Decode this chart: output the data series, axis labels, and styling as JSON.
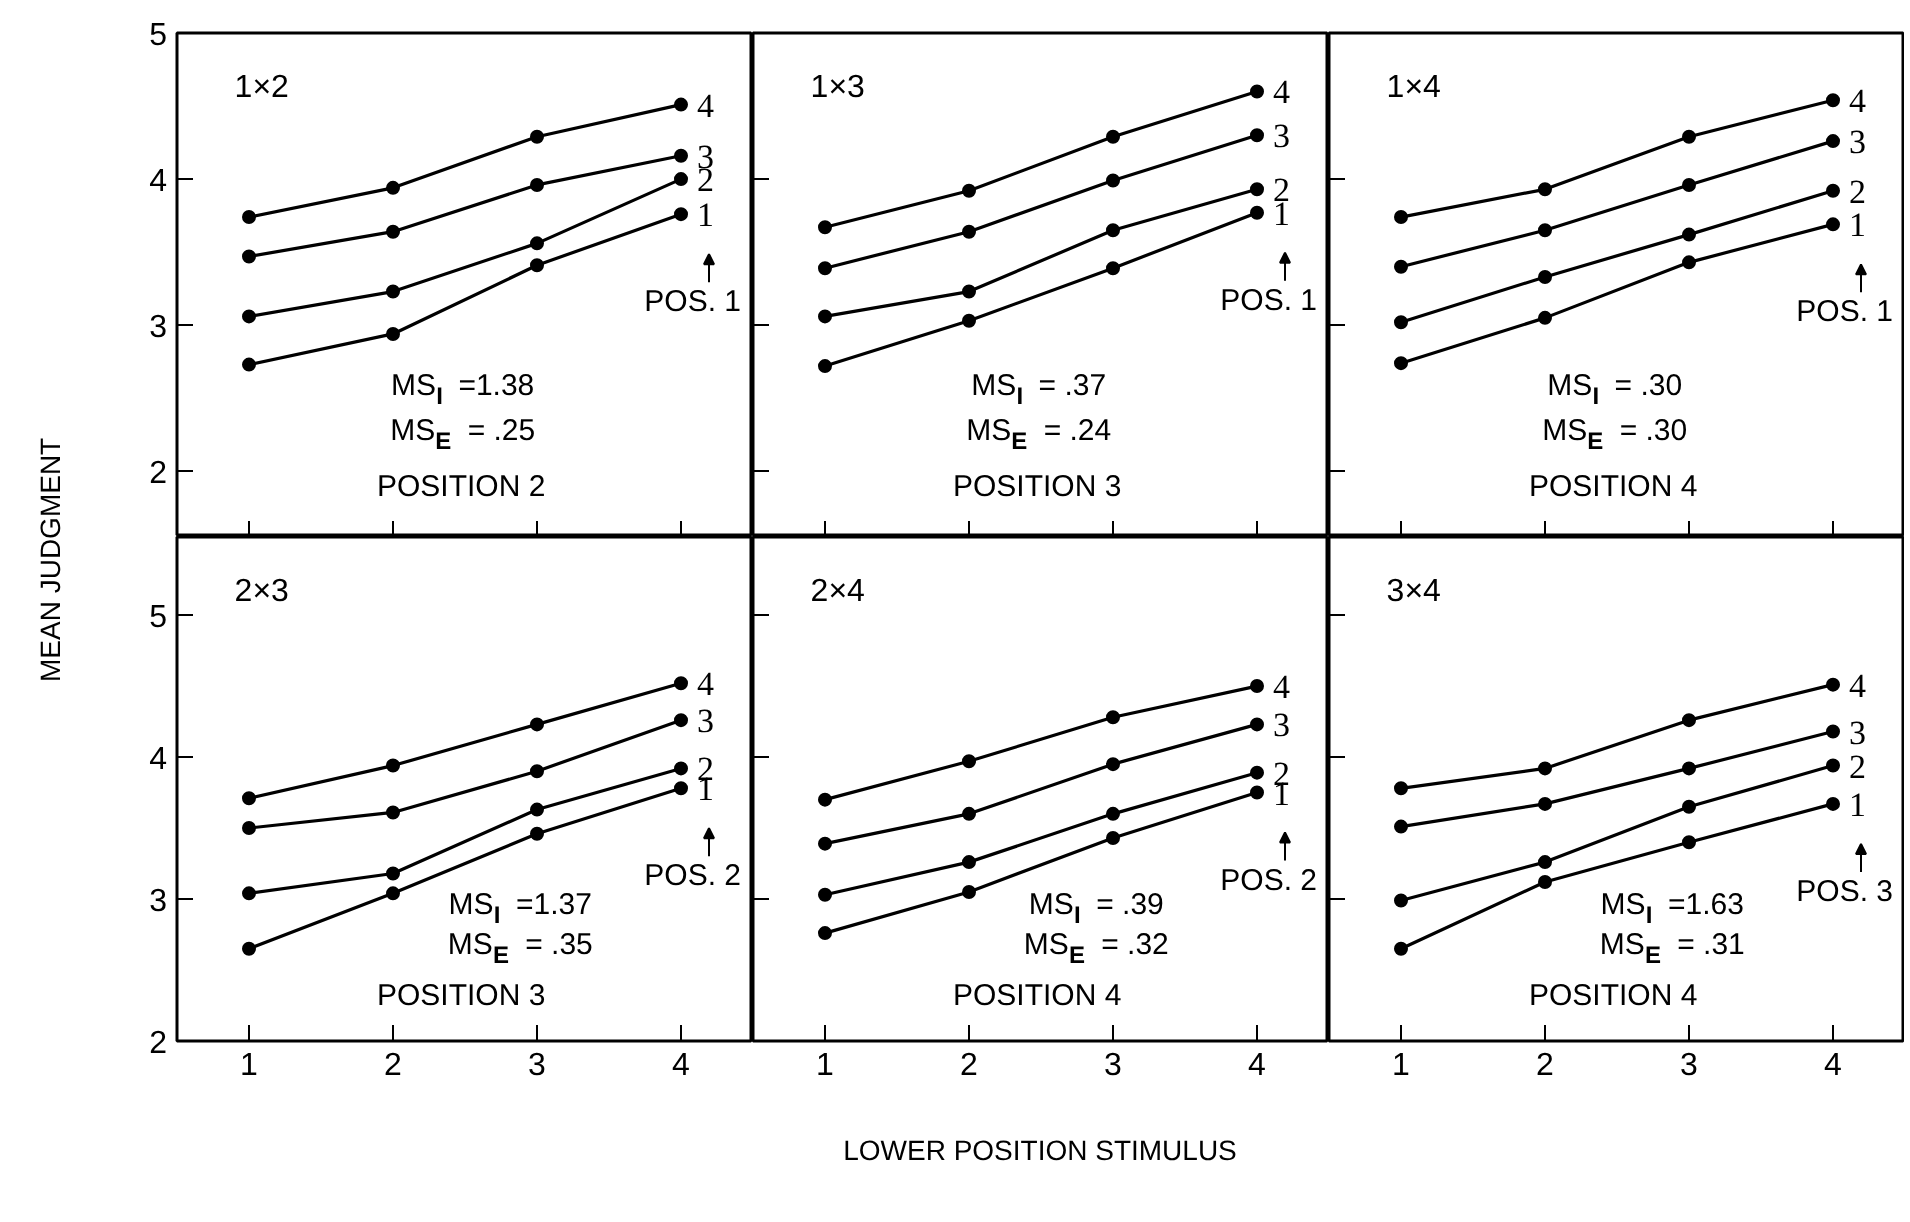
{
  "chart_data": [
    {
      "type": "line",
      "title": "1×2",
      "ylabel": "MEAN JUDGMENT",
      "x": [
        1,
        2,
        3,
        4
      ],
      "xlim": [
        0.5,
        4.5
      ],
      "ylim": [
        1.55,
        5
      ],
      "xticks": [
        1,
        2,
        3,
        4
      ],
      "yticks": [
        2,
        3,
        4,
        5
      ],
      "tick_labels": "y",
      "marker": "circle",
      "series": [
        {
          "name": "1",
          "color": "#000000",
          "values": [
            2.73,
            2.94,
            3.41,
            3.76
          ]
        },
        {
          "name": "2",
          "color": "#000000",
          "values": [
            3.06,
            3.23,
            3.56,
            4.0
          ]
        },
        {
          "name": "3",
          "color": "#000000",
          "values": [
            3.47,
            3.64,
            3.96,
            4.16
          ]
        },
        {
          "name": "4",
          "color": "#000000",
          "values": [
            3.74,
            3.94,
            4.29,
            4.51
          ]
        }
      ],
      "legend": "right",
      "annotations": [
        "MS$_{I}$ =1.38",
        "MS$_{E}$ = .25",
        "POSITION 2",
        "POS. 1"
      ]
    },
    {
      "type": "line",
      "title": "1×3",
      "x": [
        1,
        2,
        3,
        4
      ],
      "xlim": [
        0.5,
        4.5
      ],
      "ylim": [
        1.55,
        5
      ],
      "xticks": [
        1,
        2,
        3,
        4
      ],
      "yticks": [
        2,
        3,
        4,
        5
      ],
      "tick_labels": false,
      "marker": "circle",
      "series": [
        {
          "name": "1",
          "color": "#000000",
          "values": [
            2.72,
            3.03,
            3.39,
            3.77
          ]
        },
        {
          "name": "2",
          "color": "#000000",
          "values": [
            3.06,
            3.23,
            3.65,
            3.93
          ]
        },
        {
          "name": "3",
          "color": "#000000",
          "values": [
            3.39,
            3.64,
            3.99,
            4.3
          ]
        },
        {
          "name": "4",
          "color": "#000000",
          "values": [
            3.67,
            3.92,
            4.29,
            4.6
          ]
        }
      ],
      "legend": "right",
      "annotations": [
        "MS$_{I}$ = .37",
        "MS$_{E}$ = .24",
        "POSITION 3",
        "POS. 1"
      ]
    },
    {
      "type": "line",
      "title": "1×4",
      "x": [
        1,
        2,
        3,
        4
      ],
      "xlim": [
        0.5,
        4.5
      ],
      "ylim": [
        1.55,
        5
      ],
      "xticks": [
        1,
        2,
        3,
        4
      ],
      "yticks": [
        2,
        3,
        4,
        5
      ],
      "tick_labels": false,
      "marker": "circle",
      "series": [
        {
          "name": "1",
          "color": "#000000",
          "values": [
            2.74,
            3.05,
            3.43,
            3.69
          ]
        },
        {
          "name": "2",
          "color": "#000000",
          "values": [
            3.02,
            3.33,
            3.62,
            3.92
          ]
        },
        {
          "name": "3",
          "color": "#000000",
          "values": [
            3.4,
            3.65,
            3.96,
            4.26
          ]
        },
        {
          "name": "4",
          "color": "#000000",
          "values": [
            3.74,
            3.93,
            4.29,
            4.54
          ]
        }
      ],
      "legend": "right",
      "annotations": [
        "MS$_{I}$ = .30",
        "MS$_{E}$ = .30",
        "POSITION 4",
        "POS. 1"
      ]
    },
    {
      "type": "line",
      "title": "2×3",
      "x": [
        1,
        2,
        3,
        4
      ],
      "xlim": [
        0.5,
        4.5
      ],
      "ylim": [
        2,
        5.55
      ],
      "xticks": [
        1,
        2,
        3,
        4
      ],
      "yticks": [
        2,
        3,
        4,
        5
      ],
      "marker": "circle",
      "series": [
        {
          "name": "1",
          "color": "#000000",
          "values": [
            2.65,
            3.04,
            3.46,
            3.78
          ]
        },
        {
          "name": "2",
          "color": "#000000",
          "values": [
            3.04,
            3.18,
            3.63,
            3.92
          ]
        },
        {
          "name": "3",
          "color": "#000000",
          "values": [
            3.5,
            3.61,
            3.9,
            4.26
          ]
        },
        {
          "name": "4",
          "color": "#000000",
          "values": [
            3.71,
            3.94,
            4.23,
            4.52
          ]
        }
      ],
      "legend": "right",
      "annotations": [
        "MS$_{I}$ =1.37",
        "MS$_{E}$ = .35",
        "POSITION 3",
        "POS. 2"
      ]
    },
    {
      "type": "line",
      "title": "2×4",
      "xlabel": "LOWER POSITION STIMULUS",
      "x": [
        1,
        2,
        3,
        4
      ],
      "xlim": [
        0.5,
        4.5
      ],
      "ylim": [
        2,
        5.55
      ],
      "xticks": [
        1,
        2,
        3,
        4
      ],
      "yticks": [
        2,
        3,
        4,
        5
      ],
      "tick_labels": "x",
      "marker": "circle",
      "series": [
        {
          "name": "1",
          "color": "#000000",
          "values": [
            2.76,
            3.05,
            3.43,
            3.75
          ]
        },
        {
          "name": "2",
          "color": "#000000",
          "values": [
            3.03,
            3.26,
            3.6,
            3.89
          ]
        },
        {
          "name": "3",
          "color": "#000000",
          "values": [
            3.39,
            3.6,
            3.95,
            4.23
          ]
        },
        {
          "name": "4",
          "color": "#000000",
          "values": [
            3.7,
            3.97,
            4.28,
            4.5
          ]
        }
      ],
      "legend": "right",
      "annotations": [
        "MS$_{I}$ = .39",
        "MS$_{E}$ = .32",
        "POSITION 4",
        "POS. 2"
      ]
    },
    {
      "type": "line",
      "title": "3×4",
      "x": [
        1,
        2,
        3,
        4
      ],
      "xlim": [
        0.5,
        4.5
      ],
      "ylim": [
        2,
        5.55
      ],
      "xticks": [
        1,
        2,
        3,
        4
      ],
      "yticks": [
        2,
        3,
        4,
        5
      ],
      "tick_labels": "x",
      "marker": "circle",
      "series": [
        {
          "name": "1",
          "color": "#000000",
          "values": [
            2.65,
            3.12,
            3.4,
            3.67
          ]
        },
        {
          "name": "2",
          "color": "#000000",
          "values": [
            2.99,
            3.26,
            3.65,
            3.94
          ]
        },
        {
          "name": "3",
          "color": "#000000",
          "values": [
            3.51,
            3.67,
            3.92,
            4.18
          ]
        },
        {
          "name": "4",
          "color": "#000000",
          "values": [
            3.78,
            3.92,
            4.26,
            4.51
          ]
        }
      ],
      "legend": "right",
      "annotations": [
        "MS$_{I}$ =1.63",
        "MS$_{E}$ = .31",
        "POSITION 4",
        "POS. 3"
      ]
    }
  ]
}
